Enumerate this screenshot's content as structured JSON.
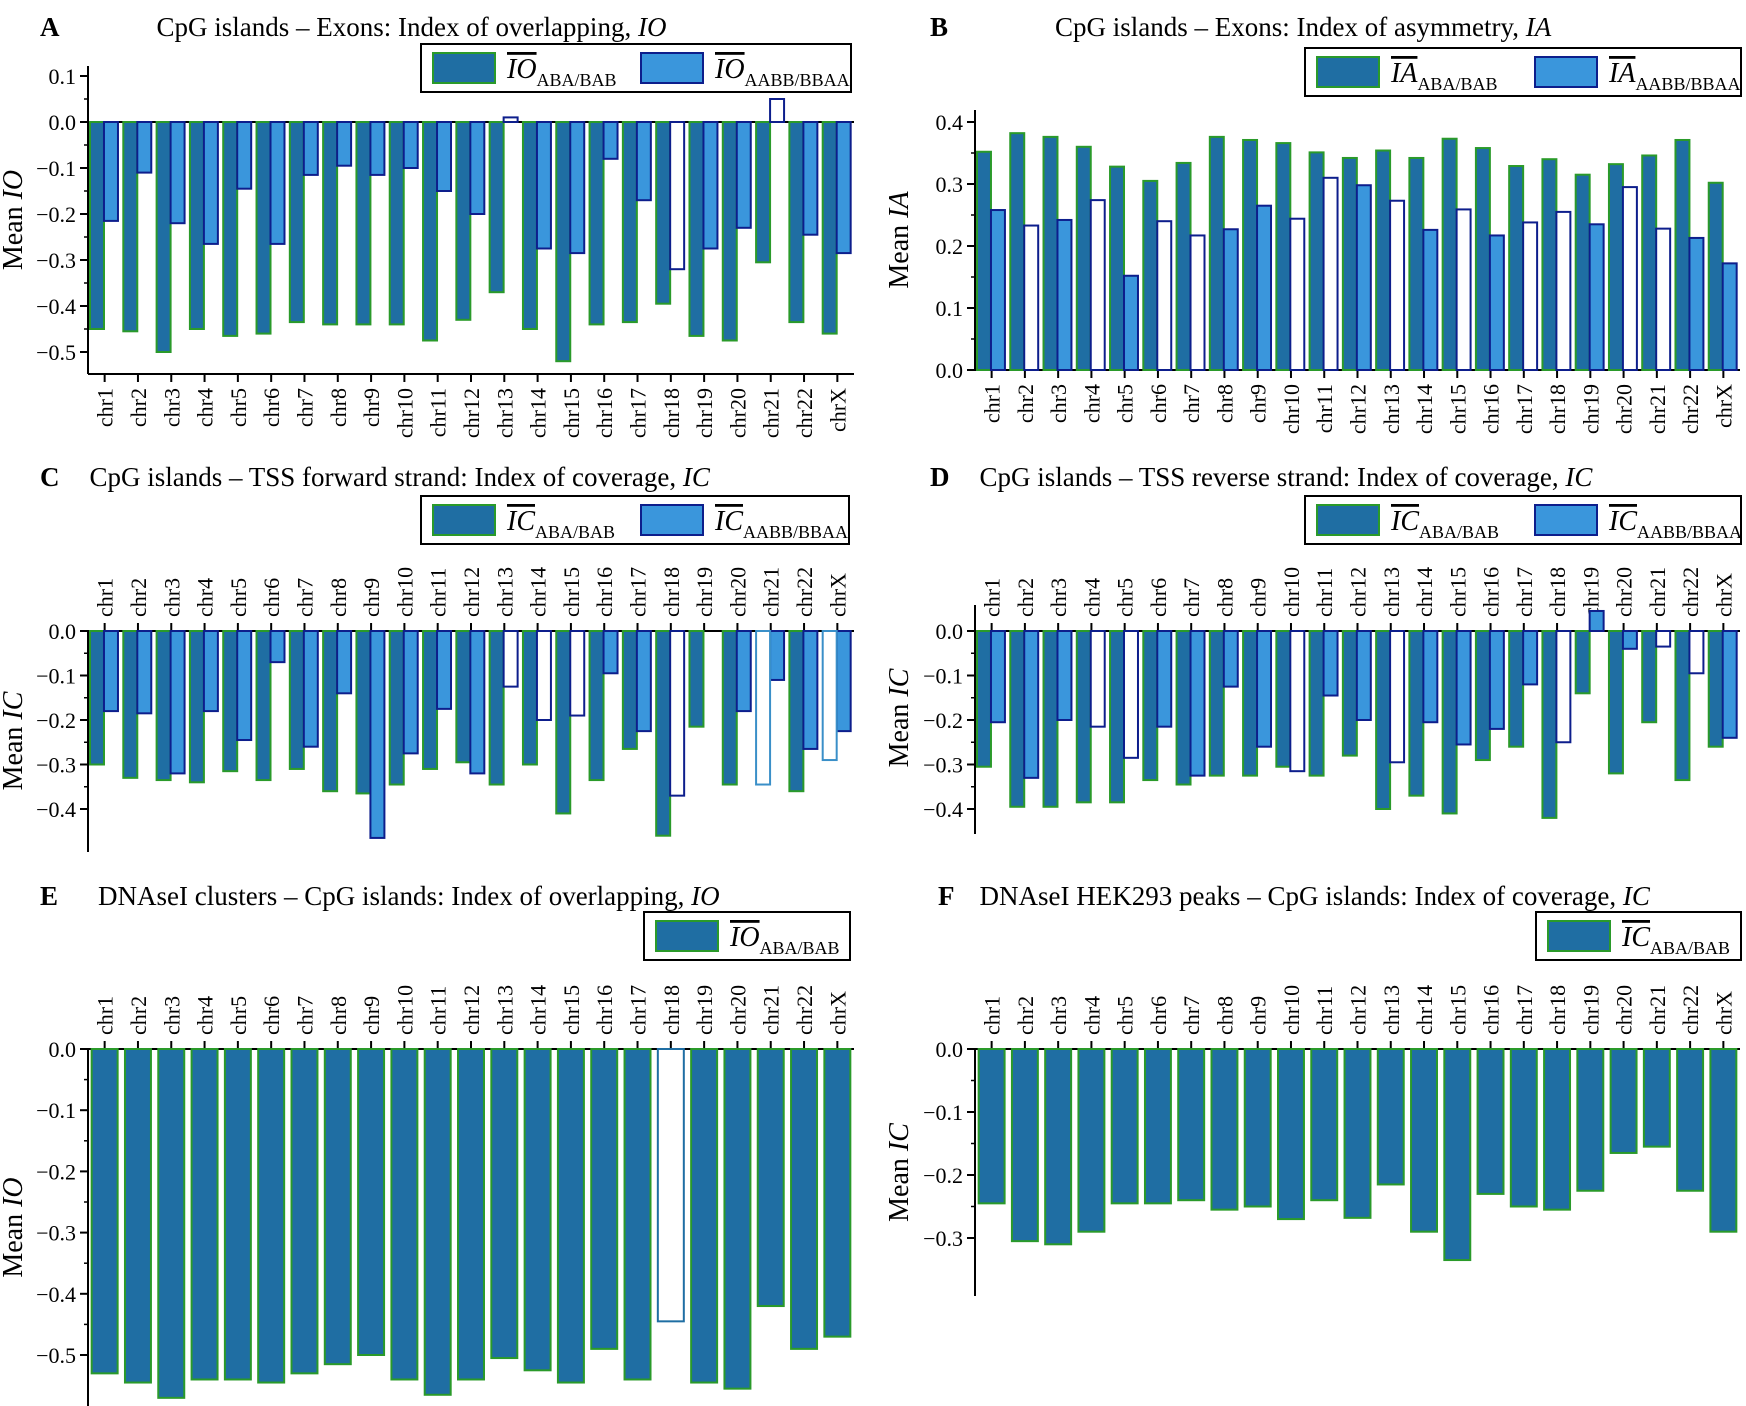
{
  "colors": {
    "dark_fill": "#1f6ea3",
    "dark_stroke": "#2a9a2a",
    "light_fill": "#3a96dc",
    "light_stroke": "#0d1e8c",
    "hollow_fill": "#ffffff",
    "axis": "#000000"
  },
  "chart_data": [
    {
      "id": "A",
      "type": "bar",
      "letter": "A",
      "title": "CpG islands – Exons: Index of overlapping, ",
      "title_italic": "IO",
      "ylabel": "Mean ",
      "ylabel_italic": "IO",
      "ylim": [
        -0.55,
        0.1
      ],
      "yticks": [
        0.1,
        0.0,
        -0.1,
        -0.2,
        -0.3,
        -0.4,
        -0.5
      ],
      "ytick_labels": [
        "0.1",
        "0.0",
        "−0.1",
        "−0.2",
        "−0.3",
        "−0.4",
        "−0.5"
      ],
      "xlabels_position": "bottom",
      "categories": [
        "chr1",
        "chr2",
        "chr3",
        "chr4",
        "chr5",
        "chr6",
        "chr7",
        "chr8",
        "chr9",
        "chr10",
        "chr11",
        "chr12",
        "chr13",
        "chr14",
        "chr15",
        "chr16",
        "chr17",
        "chr18",
        "chr19",
        "chr20",
        "chr21",
        "chr22",
        "chrX"
      ],
      "series": [
        {
          "name": "IO",
          "subscript": "ABA/BAB",
          "style": "dark",
          "values": [
            -0.45,
            -0.455,
            -0.5,
            -0.45,
            -0.465,
            -0.46,
            -0.435,
            -0.44,
            -0.44,
            -0.44,
            -0.475,
            -0.43,
            -0.37,
            -0.45,
            -0.52,
            -0.44,
            -0.435,
            -0.395,
            -0.465,
            -0.475,
            -0.305,
            -0.435,
            -0.46
          ],
          "hollow": []
        },
        {
          "name": "IO",
          "subscript": "AABB/BBAA",
          "style": "light",
          "values": [
            -0.215,
            -0.11,
            -0.22,
            -0.265,
            -0.145,
            -0.265,
            -0.115,
            -0.095,
            -0.115,
            -0.1,
            -0.15,
            -0.2,
            0.01,
            -0.275,
            -0.285,
            -0.08,
            -0.17,
            -0.32,
            -0.275,
            -0.23,
            0.05,
            -0.245,
            -0.285
          ],
          "hollow": [
            12,
            17,
            20
          ]
        }
      ]
    },
    {
      "id": "B",
      "type": "bar",
      "letter": "B",
      "title": "CpG islands – Exons: Index of asymmetry, ",
      "title_italic": "IA",
      "ylabel": "Mean ",
      "ylabel_italic": "IA",
      "ylim": [
        0.0,
        0.42
      ],
      "yticks": [
        0.4,
        0.3,
        0.2,
        0.1,
        0.0
      ],
      "ytick_labels": [
        "0.4",
        "0.3",
        "0.2",
        "0.1",
        "0.0"
      ],
      "xlabels_position": "bottom",
      "categories": [
        "chr1",
        "chr2",
        "chr3",
        "chr4",
        "chr5",
        "chr6",
        "chr7",
        "chr8",
        "chr9",
        "chr10",
        "chr11",
        "chr12",
        "chr13",
        "chr14",
        "chr15",
        "chr16",
        "chr17",
        "chr18",
        "chr19",
        "chr20",
        "chr21",
        "chr22",
        "chrX"
      ],
      "series": [
        {
          "name": "IA",
          "subscript": "ABA/BAB",
          "style": "dark",
          "values": [
            0.352,
            0.382,
            0.376,
            0.36,
            0.328,
            0.305,
            0.334,
            0.376,
            0.371,
            0.366,
            0.351,
            0.342,
            0.354,
            0.342,
            0.373,
            0.358,
            0.329,
            0.34,
            0.315,
            0.332,
            0.346,
            0.371,
            0.302
          ],
          "hollow": []
        },
        {
          "name": "IA",
          "subscript": "AABB/BBAA",
          "style": "light",
          "values": [
            0.258,
            0.233,
            0.242,
            0.274,
            0.152,
            0.24,
            0.217,
            0.227,
            0.265,
            0.244,
            0.31,
            0.298,
            0.273,
            0.226,
            0.259,
            0.217,
            0.238,
            0.255,
            0.235,
            0.295,
            0.228,
            0.213,
            0.172
          ],
          "hollow": [
            1,
            3,
            5,
            6,
            9,
            10,
            12,
            14,
            16,
            17,
            19,
            20
          ]
        }
      ]
    },
    {
      "id": "C",
      "type": "bar",
      "letter": "C",
      "title": "CpG islands – TSS forward strand: Index of coverage, ",
      "title_italic": "IC",
      "ylabel": "Mean ",
      "ylabel_italic": "IC",
      "ylim": [
        -0.47,
        0.0
      ],
      "yticks": [
        0.0,
        -0.1,
        -0.2,
        -0.3,
        -0.4
      ],
      "ytick_labels": [
        "0.0",
        "−0.1",
        "−0.2",
        "−0.3",
        "−0.4"
      ],
      "xlabels_position": "top",
      "categories": [
        "chr1",
        "chr2",
        "chr3",
        "chr4",
        "chr5",
        "chr6",
        "chr7",
        "chr8",
        "chr9",
        "chr10",
        "chr11",
        "chr12",
        "chr13",
        "chr14",
        "chr15",
        "chr16",
        "chr17",
        "chr18",
        "chr19",
        "chr20",
        "chr21",
        "chr22",
        "chrX"
      ],
      "series": [
        {
          "name": "IC",
          "subscript": "ABA/BAB",
          "style": "dark",
          "values": [
            -0.3,
            -0.33,
            -0.335,
            -0.34,
            -0.315,
            -0.335,
            -0.31,
            -0.36,
            -0.365,
            -0.345,
            -0.31,
            -0.295,
            -0.345,
            -0.3,
            -0.41,
            -0.335,
            -0.265,
            -0.46,
            -0.215,
            -0.345,
            -0.0,
            -0.36,
            -0.0
          ],
          "hollow": [
            20,
            22
          ]
        },
        {
          "name": "IC",
          "subscript": "AABB/BBAA",
          "style": "light",
          "values": [
            -0.18,
            -0.185,
            -0.32,
            -0.18,
            -0.245,
            -0.07,
            -0.26,
            -0.14,
            -0.465,
            -0.275,
            -0.175,
            -0.32,
            -0.125,
            -0.2,
            -0.19,
            -0.095,
            -0.225,
            -0.37,
            -0.0,
            -0.18,
            -0.11,
            -0.265,
            -0.225
          ],
          "hollow": [
            12,
            13,
            14,
            17
          ]
        },
        {
          "name": "hollow_dark",
          "subscript": "",
          "style": "hollowdark",
          "values": [
            0,
            0,
            0,
            0,
            0,
            0,
            0,
            0,
            0,
            0,
            0,
            0,
            0,
            0,
            0,
            0,
            0,
            0,
            0,
            0,
            -0.345,
            0,
            -0.29
          ],
          "hollow": []
        }
      ]
    },
    {
      "id": "D",
      "type": "bar",
      "letter": "D",
      "title": "CpG islands – TSS reverse strand: Index of coverage, ",
      "title_italic": "IC",
      "ylabel": "Mean ",
      "ylabel_italic": "IC",
      "ylim": [
        -0.45,
        0.05
      ],
      "yticks": [
        0.0,
        -0.1,
        -0.2,
        -0.3,
        -0.4
      ],
      "ytick_labels": [
        "0.0",
        "−0.1",
        "−0.2",
        "−0.3",
        "−0.4"
      ],
      "xlabels_position": "top",
      "categories": [
        "chr1",
        "chr2",
        "chr3",
        "chr4",
        "chr5",
        "chr6",
        "chr7",
        "chr8",
        "chr9",
        "chr10",
        "chr11",
        "chr12",
        "chr13",
        "chr14",
        "chr15",
        "chr16",
        "chr17",
        "chr18",
        "chr19",
        "chr20",
        "chr21",
        "chr22",
        "chrX"
      ],
      "series": [
        {
          "name": "IC",
          "subscript": "ABA/BAB",
          "style": "dark",
          "values": [
            -0.305,
            -0.395,
            -0.395,
            -0.385,
            -0.385,
            -0.335,
            -0.345,
            -0.325,
            -0.325,
            -0.305,
            -0.325,
            -0.28,
            -0.4,
            -0.37,
            -0.41,
            -0.29,
            -0.26,
            -0.42,
            -0.14,
            -0.32,
            -0.205,
            -0.335,
            -0.26
          ],
          "hollow": []
        },
        {
          "name": "IC",
          "subscript": "AABB/BBAA",
          "style": "light",
          "values": [
            -0.205,
            -0.33,
            -0.2,
            -0.215,
            -0.285,
            -0.215,
            -0.325,
            -0.125,
            -0.26,
            -0.315,
            -0.145,
            -0.2,
            -0.295,
            -0.205,
            -0.255,
            -0.22,
            -0.12,
            -0.25,
            0.045,
            -0.04,
            -0.035,
            -0.095,
            -0.24
          ],
          "hollow": [
            3,
            4,
            9,
            12,
            17,
            20,
            21
          ]
        }
      ]
    },
    {
      "id": "E",
      "type": "bar",
      "letter": "E",
      "title": "DNAseI clusters – CpG islands: Index of overlapping, ",
      "title_italic": "IO",
      "ylabel": "Mean ",
      "ylabel_italic": "IO",
      "ylim": [
        -0.59,
        0.0
      ],
      "yticks": [
        0.0,
        -0.1,
        -0.2,
        -0.3,
        -0.4,
        -0.5
      ],
      "ytick_labels": [
        "0.0",
        "−0.1",
        "−0.2",
        "−0.3",
        "−0.4",
        "−0.5"
      ],
      "xlabels_position": "top",
      "categories": [
        "chr1",
        "chr2",
        "chr3",
        "chr4",
        "chr5",
        "chr6",
        "chr7",
        "chr8",
        "chr9",
        "chr10",
        "chr11",
        "chr12",
        "chr13",
        "chr14",
        "chr15",
        "chr16",
        "chr17",
        "chr18",
        "chr19",
        "chr20",
        "chr21",
        "chr22",
        "chrX"
      ],
      "series": [
        {
          "name": "IO",
          "subscript": "ABA/BAB",
          "style": "dark",
          "values": [
            -0.53,
            -0.545,
            -0.57,
            -0.54,
            -0.54,
            -0.545,
            -0.53,
            -0.515,
            -0.5,
            -0.54,
            -0.565,
            -0.54,
            -0.505,
            -0.525,
            -0.545,
            -0.49,
            -0.54,
            -0.445,
            -0.545,
            -0.555,
            -0.42,
            -0.49,
            -0.47
          ],
          "hollow": [
            17
          ]
        }
      ]
    },
    {
      "id": "F",
      "type": "bar",
      "letter": "F",
      "title": "DNAseI HEK293 peaks – CpG islands: Index of coverage, ",
      "title_italic": "IC",
      "ylabel": "Mean ",
      "ylabel_italic": "IC",
      "ylim": [
        -0.36,
        0.0
      ],
      "yticks": [
        0.0,
        -0.1,
        -0.2,
        -0.3
      ],
      "ytick_labels": [
        "0.0",
        "−0.1",
        "−0.2",
        "−0.3"
      ],
      "xlabels_position": "top",
      "categories": [
        "chr1",
        "chr2",
        "chr3",
        "chr4",
        "chr5",
        "chr6",
        "chr7",
        "chr8",
        "chr9",
        "chr10",
        "chr11",
        "chr12",
        "chr13",
        "chr14",
        "chr15",
        "chr16",
        "chr17",
        "chr18",
        "chr19",
        "chr20",
        "chr21",
        "chr22",
        "chrX"
      ],
      "series": [
        {
          "name": "IC",
          "subscript": "ABA/BAB",
          "style": "dark",
          "values": [
            -0.245,
            -0.305,
            -0.31,
            -0.29,
            -0.245,
            -0.245,
            -0.24,
            -0.255,
            -0.25,
            -0.27,
            -0.24,
            -0.268,
            -0.215,
            -0.29,
            -0.335,
            -0.23,
            -0.25,
            -0.255,
            -0.225,
            -0.165,
            -0.155,
            -0.225,
            -0.29
          ],
          "hollow": []
        }
      ]
    }
  ]
}
